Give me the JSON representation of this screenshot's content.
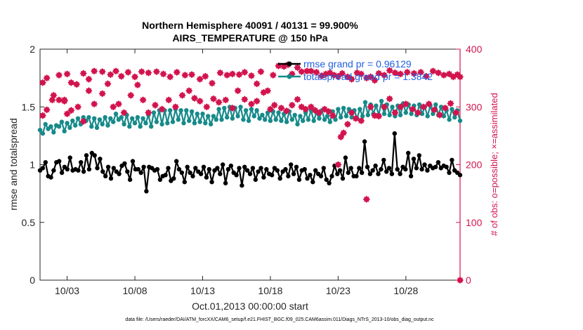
{
  "chart_data": {
    "type": "line",
    "title": [
      "Northern Hemisphere 40091 / 40131 = 99.900%",
      "AIRS_TEMPERATURE @ 150 hPa"
    ],
    "xlabel": "Oct.01,2013 00:00:00 start",
    "ylabel": "rmse and totalspread",
    "y2label": "# of obs: o=possible; ×=assimilated",
    "x_tick_labels": [
      "10/03",
      "10/08",
      "10/13",
      "10/18",
      "10/23",
      "10/28"
    ],
    "x_tick_days": [
      3,
      8,
      13,
      18,
      23,
      28
    ],
    "xlim": [
      1,
      32
    ],
    "ylim": [
      0,
      2
    ],
    "y_ticks": [
      0,
      0.5,
      1,
      1.5,
      2
    ],
    "y_tick_labels": [
      "0",
      "0.5",
      "1",
      "1.5",
      "2"
    ],
    "y2lim": [
      0,
      400
    ],
    "y2_ticks": [
      0,
      100,
      200,
      300,
      400
    ],
    "y2_tick_labels": [
      "0",
      "100",
      "200",
      "300",
      "400"
    ],
    "series": [
      {
        "name": "rmse grand pr = 0.96129",
        "color": "#000000",
        "axis": "left",
        "values": [
          0.95,
          0.97,
          1.02,
          0.9,
          0.89,
          0.95,
          1.02,
          1.03,
          0.93,
          0.98,
          0.96,
          1.06,
          0.95,
          0.96,
          0.95,
          1.02,
          0.94,
          1.08,
          0.96,
          1.1,
          1.08,
          0.97,
          1.05,
          0.94,
          0.9,
          0.98,
          0.88,
          0.97,
          0.94,
          0.92,
          0.99,
          1.01,
          0.94,
          0.87,
          1.03,
          0.96,
          0.96,
          0.93,
          0.98,
          0.77,
          0.98,
          0.97,
          0.95,
          0.96,
          0.87,
          0.9,
          0.91,
          0.97,
          0.86,
          0.88,
          1.03,
          0.96,
          0.93,
          0.85,
          0.98,
          0.93,
          0.9,
          0.97,
          0.94,
          0.92,
          0.98,
          0.89,
          0.96,
          0.85,
          0.95,
          0.97,
          0.92,
          1.0,
          0.84,
          0.96,
          0.99,
          0.93,
          0.91,
          0.97,
          0.82,
          0.98,
          0.95,
          0.92,
          0.97,
          0.87,
          0.94,
          0.97,
          0.89,
          0.96,
          0.92,
          0.91,
          0.97,
          0.95,
          0.88,
          0.94,
          0.96,
          0.9,
          1.0,
          0.92,
          0.98,
          0.87,
          0.95,
          0.96,
          0.88,
          0.91,
          0.85,
          0.95,
          0.92,
          0.9,
          0.97,
          0.87,
          0.84,
          0.9,
          0.99,
          0.92,
          0.95,
          0.88,
          1.06,
          0.93,
          0.97,
          0.9,
          0.9,
          0.97,
          0.93,
          1.2,
          0.98,
          0.92,
          0.95,
          0.99,
          0.92,
          0.96,
          1.04,
          0.94,
          0.97,
          0.92,
          1.27,
          0.96,
          0.92,
          0.98,
          0.96,
          1.1,
          0.9,
          1.05,
          0.97,
          1.08,
          0.96,
          1.0,
          0.95,
          0.99,
          0.97,
          0.98,
          1.02,
          0.97,
          0.99,
          0.98,
          0.93,
          1.04,
          0.95,
          0.93,
          0.91
        ]
      },
      {
        "name": "totalspread grand pr = 1.3842",
        "color": "#178a8a",
        "axis": "left",
        "values": [
          1.3,
          1.27,
          1.35,
          1.31,
          1.33,
          1.28,
          1.34,
          1.33,
          1.37,
          1.29,
          1.36,
          1.32,
          1.38,
          1.34,
          1.4,
          1.35,
          1.41,
          1.38,
          1.41,
          1.33,
          1.4,
          1.32,
          1.39,
          1.35,
          1.41,
          1.34,
          1.4,
          1.37,
          1.44,
          1.39,
          1.41,
          1.35,
          1.43,
          1.33,
          1.4,
          1.36,
          1.41,
          1.33,
          1.4,
          1.36,
          1.43,
          1.33,
          1.45,
          1.37,
          1.47,
          1.35,
          1.47,
          1.36,
          1.47,
          1.37,
          1.48,
          1.39,
          1.47,
          1.36,
          1.47,
          1.38,
          1.46,
          1.36,
          1.44,
          1.37,
          1.44,
          1.36,
          1.42,
          1.35,
          1.42,
          1.39,
          1.48,
          1.39,
          1.49,
          1.41,
          1.5,
          1.4,
          1.49,
          1.42,
          1.5,
          1.39,
          1.47,
          1.38,
          1.48,
          1.42,
          1.47,
          1.4,
          1.43,
          1.39,
          1.45,
          1.38,
          1.46,
          1.39,
          1.45,
          1.38,
          1.44,
          1.37,
          1.46,
          1.39,
          1.43,
          1.35,
          1.42,
          1.38,
          1.45,
          1.39,
          1.47,
          1.38,
          1.45,
          1.4,
          1.47,
          1.39,
          1.42,
          1.37,
          1.46,
          1.39,
          1.48,
          1.41,
          1.49,
          1.42,
          1.48,
          1.41,
          1.47,
          1.4,
          1.48,
          1.42,
          1.54,
          1.43,
          1.52,
          1.44,
          1.51,
          1.43,
          1.55,
          1.44,
          1.52,
          1.43,
          1.5,
          1.42,
          1.51,
          1.43,
          1.53,
          1.45,
          1.52,
          1.44,
          1.51,
          1.43,
          1.52,
          1.44,
          1.5,
          1.42,
          1.51,
          1.44,
          1.52,
          1.43,
          1.5,
          1.42,
          1.47,
          1.39,
          1.48,
          1.41,
          1.47,
          1.38
        ]
      },
      {
        "name": "# of obs possible",
        "color": "#d2144e",
        "axis": "right",
        "x": [
          1.2,
          1.5,
          1.9,
          2.4,
          2.8,
          3.0,
          3.3,
          3.7,
          4.2,
          4.6,
          5.0,
          5.6,
          6.2,
          6.6,
          7.0,
          7.5,
          8.0,
          8.5,
          9.0,
          9.6,
          10.1,
          10.6,
          11.1,
          11.7,
          12.2,
          12.8,
          13.2,
          13.7,
          14.3,
          14.8,
          15.2,
          15.7,
          16.1,
          16.6,
          17.0,
          17.3,
          17.8,
          18.2,
          18.6,
          19.0,
          19.3,
          19.6,
          20.0,
          20.3,
          20.7,
          21.0,
          21.4,
          21.8,
          22.1,
          22.4,
          22.7,
          23.0,
          23.3,
          23.7,
          24.0,
          24.4,
          24.7,
          25.1,
          25.4,
          25.7,
          26.0,
          26.4,
          26.8,
          27.2,
          27.6,
          28.1,
          28.6,
          29.1,
          29.5,
          30.0,
          30.4,
          30.8,
          31.2,
          31.5,
          31.8,
          32.0
        ],
        "values": [
          342,
          350,
          312,
          355,
          310,
          357,
          342,
          339,
          358,
          348,
          362,
          361,
          356,
          362,
          353,
          360,
          352,
          361,
          359,
          361,
          357,
          352,
          360,
          355,
          356,
          348,
          353,
          341,
          359,
          355,
          357,
          356,
          360,
          354,
          340,
          361,
          328,
          355,
          371,
          370,
          373,
          357,
          368,
          361,
          362,
          362,
          360,
          354,
          357,
          359,
          355,
          353,
          358,
          352,
          348,
          359,
          357,
          350,
          352,
          346,
          358,
          355,
          363,
          359,
          357,
          360,
          358,
          360,
          353,
          362,
          359,
          355,
          357,
          352,
          356,
          352
        ]
      },
      {
        "name": "# of obs assimilated",
        "color": "#d2144e",
        "axis": "right",
        "x": [
          1.2,
          1.5,
          2.0,
          2.4,
          2.8,
          3.0,
          3.3,
          3.8,
          4.2,
          4.6,
          5.0,
          5.6,
          6.0,
          6.4,
          6.8,
          7.2,
          7.7,
          8.2,
          8.6,
          9.0,
          9.5,
          10.0,
          10.5,
          11.0,
          11.5,
          12.0,
          12.4,
          12.8,
          13.3,
          13.8,
          14.2,
          14.7,
          15.2,
          15.6,
          16.1,
          16.6,
          17.0,
          17.5,
          18.0,
          18.3,
          18.8,
          19.2,
          19.6,
          20.0,
          20.3,
          20.6,
          21.0,
          21.3,
          21.6,
          22.0,
          22.3,
          22.6,
          23.0,
          23.2,
          23.4,
          23.7,
          24.0,
          24.3,
          24.7,
          25.1,
          25.4,
          25.7,
          26.0,
          26.4,
          26.8,
          27.2,
          27.6,
          28.0,
          28.5,
          28.9,
          29.3,
          29.7,
          30.1,
          30.5,
          30.9,
          31.3,
          31.7,
          32.0
        ],
        "values": [
          285,
          295,
          320,
          312,
          312,
          288,
          294,
          300,
          275,
          328,
          305,
          323,
          340,
          300,
          305,
          290,
          320,
          338,
          312,
          290,
          303,
          296,
          312,
          300,
          320,
          328,
          315,
          310,
          300,
          314,
          308,
          312,
          298,
          328,
          313,
          305,
          310,
          325,
          296,
          303,
          298,
          293,
          303,
          313,
          300,
          296,
          300,
          294,
          290,
          296,
          292,
          285,
          200,
          248,
          255,
          270,
          290,
          280,
          276,
          140,
          300,
          285,
          284,
          300,
          314,
          290,
          300,
          305,
          296,
          290,
          300,
          305,
          295,
          286,
          298,
          306,
          290,
          0
        ]
      }
    ]
  },
  "legend": {
    "rmse_label": "rmse grand pr = 0.96129",
    "spread_label": "totalspread grand pr = 1.3842"
  },
  "footer": "data file: /Users/raeder/DAI/ATM_forcXX/CAM6_setup/f.e21.FHIST_BGC.f09_025.CAM6assim.011/Diags_NTrS_2013-10/obs_diag_output.nc"
}
